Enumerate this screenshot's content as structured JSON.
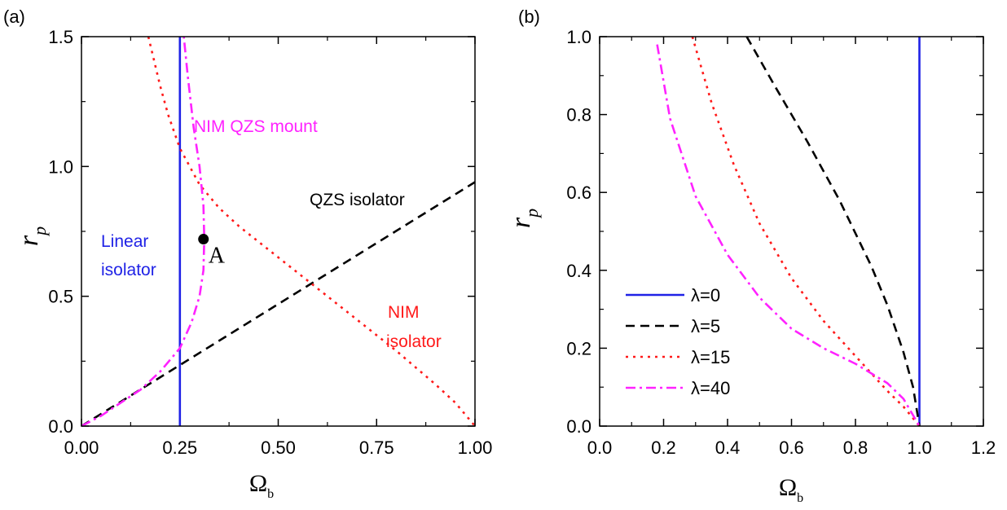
{
  "chart_data": [
    {
      "panel_label": "(a)",
      "type": "line",
      "xlabel": "Ω",
      "xlabel_sub": "b",
      "ylabel": "r",
      "ylabel_sub": "p",
      "xlim": [
        0,
        1
      ],
      "ylim": [
        0,
        1.5
      ],
      "xticks": [
        "0.00",
        "0.25",
        "0.50",
        "0.75",
        "1.00"
      ],
      "yticks": [
        "0.0",
        "0.5",
        "1.0",
        "1.5"
      ],
      "grid": false,
      "colors": {
        "linear": "#1f22e6",
        "qzs": "#000000",
        "nim": "#ff1a1a",
        "nimqzs": "#ff22ff",
        "point": "#000000"
      },
      "series": [
        {
          "key": "linear",
          "dash": "solid",
          "x": [
            0.25,
            0.25
          ],
          "y": [
            0,
            1.5
          ]
        },
        {
          "key": "qzs",
          "dash": "dash",
          "x": [
            0,
            0.2,
            0.4,
            0.6,
            0.8,
            1.0
          ],
          "y": [
            0,
            0.188,
            0.376,
            0.564,
            0.752,
            0.94
          ]
        },
        {
          "key": "nim",
          "dash": "dot",
          "x": [
            0.17,
            0.2,
            0.22,
            0.25,
            0.3,
            0.35,
            0.4,
            0.5,
            0.6,
            0.7,
            0.8,
            0.9,
            0.95,
            1.0
          ],
          "y": [
            1.5,
            1.31,
            1.2,
            1.07,
            0.93,
            0.84,
            0.77,
            0.65,
            0.53,
            0.41,
            0.29,
            0.16,
            0.09,
            0.0
          ]
        },
        {
          "key": "nimqzs",
          "dash": "dashdot",
          "x": [
            0,
            0.05,
            0.1,
            0.15,
            0.2,
            0.25,
            0.28,
            0.3,
            0.31,
            0.312,
            0.31,
            0.3,
            0.285,
            0.27,
            0.26
          ],
          "y": [
            0,
            0.04,
            0.09,
            0.14,
            0.21,
            0.3,
            0.4,
            0.5,
            0.6,
            0.72,
            0.85,
            1.0,
            1.15,
            1.35,
            1.5
          ]
        }
      ],
      "point": {
        "x": 0.31,
        "y": 0.72,
        "label": "A"
      },
      "annotations": {
        "nimqzs": "NIM QZS mount",
        "qzs": "QZS isolator",
        "linear_1": "Linear",
        "linear_2": "isolator",
        "nim_1": "NIM",
        "nim_2": "isolator"
      }
    },
    {
      "panel_label": "(b)",
      "type": "line",
      "xlabel": "Ω",
      "xlabel_sub": "b",
      "ylabel": "r",
      "ylabel_sub": "p",
      "xlim": [
        0,
        1.2
      ],
      "ylim": [
        0,
        1.0
      ],
      "xticks": [
        "0.0",
        "0.2",
        "0.4",
        "0.6",
        "0.8",
        "1.0",
        "1.2"
      ],
      "yticks": [
        "0.0",
        "0.2",
        "0.4",
        "0.6",
        "0.8",
        "1.0"
      ],
      "grid": false,
      "legend_position": "bottom-left",
      "series": [
        {
          "name": "λ=0",
          "color": "#1f22e6",
          "dash": "solid",
          "x": [
            1.0,
            1.0
          ],
          "y": [
            0,
            1.0
          ]
        },
        {
          "name": "λ=5",
          "color": "#000000",
          "dash": "dash",
          "x": [
            0.46,
            0.55,
            0.65,
            0.75,
            0.85,
            0.9,
            0.95,
            0.98,
            1.0
          ],
          "y": [
            1.0,
            0.87,
            0.73,
            0.58,
            0.41,
            0.31,
            0.19,
            0.1,
            0.0
          ]
        },
        {
          "name": "λ=15",
          "color": "#ff1a1a",
          "dash": "dot",
          "x": [
            0.29,
            0.35,
            0.42,
            0.5,
            0.6,
            0.7,
            0.8,
            0.9,
            0.95,
            1.0
          ],
          "y": [
            1.0,
            0.83,
            0.67,
            0.52,
            0.38,
            0.27,
            0.18,
            0.09,
            0.05,
            0.0
          ]
        },
        {
          "name": "λ=40",
          "color": "#ff22ff",
          "dash": "dashdot",
          "x": [
            0.18,
            0.22,
            0.3,
            0.4,
            0.5,
            0.6,
            0.7,
            0.8,
            0.9,
            0.95,
            1.0
          ],
          "y": [
            0.98,
            0.79,
            0.59,
            0.44,
            0.33,
            0.25,
            0.2,
            0.16,
            0.11,
            0.07,
            0.0
          ]
        }
      ]
    }
  ]
}
